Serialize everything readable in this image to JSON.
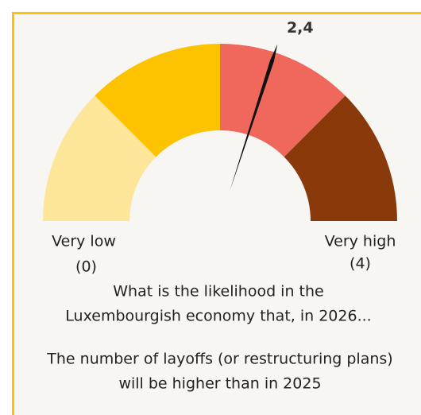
{
  "chart_data": {
    "type": "gauge",
    "ylim": [
      0,
      4
    ],
    "bands": [
      0,
      1,
      2,
      3,
      4
    ],
    "colors": [
      "#fde69a",
      "#fdc200",
      "#f0675c",
      "#8a3a0a"
    ],
    "value": 2.4,
    "value_labels": [
      "2,4"
    ],
    "needle_color": "#111111",
    "ticks": [
      {
        "value": 0,
        "label": "(0)"
      },
      {
        "value": 4,
        "label": "(4)"
      }
    ],
    "range_labels": [
      "Very low",
      "Very high"
    ],
    "question": [
      "What is the likelihood in the",
      "Luxembourgish economy that, in 2026..."
    ],
    "statement": [
      "The number of layoffs (or restructuring plans)",
      "will be higher than in 2025"
    ]
  }
}
